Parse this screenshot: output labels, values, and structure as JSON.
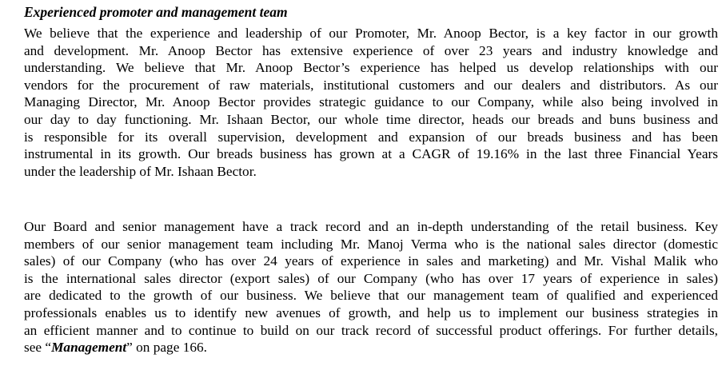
{
  "heading": "Experienced promoter and management team",
  "paragraph1": [
    "We believe that the experience and leadership of our Promoter, Mr. Anoop Bector, is a key factor in our growth",
    "and development. Mr. Anoop Bector has extensive experience of over 23 years and industry knowledge and",
    "understanding. We believe that Mr. Anoop Bector’s experience has helped us develop relationships with our",
    "vendors for the procurement of raw materials, institutional customers and our dealers and distributors.  As our",
    "Managing Director, Mr. Anoop Bector provides strategic guidance to our Company, while also being involved in",
    "our day to day functioning. Mr. Ishaan Bector, our whole time director, heads our breads and buns business and",
    "is responsible for its overall supervision, development and expansion of our breads business and has been",
    "instrumental in its growth. Our breads business has grown at a CAGR of 19.16% in the last three Financial Years",
    "under the leadership of Mr. Ishaan Bector."
  ],
  "paragraph2": [
    "Our Board and senior management have a track record and an in-depth understanding of the retail business. Key",
    "members of our senior management team including Mr. Manoj Verma who is the national sales director (domestic",
    "sales) of our Company (who has over 24 years of experience in sales and marketing) and Mr. Vishal Malik who",
    "is the international sales director (export sales) of our Company (who has over 17 years of experience in sales)",
    "are dedicated to the growth of our business. We believe that our management team of qualified and experienced",
    "professionals enables us to identify new avenues of growth, and help us to implement our business strategies in",
    "an efficient manner and to continue to build on our track record of successful product offerings. For further details,"
  ],
  "last_line": {
    "prefix": "see “",
    "link": "Management",
    "suffix": "” on page 166."
  }
}
